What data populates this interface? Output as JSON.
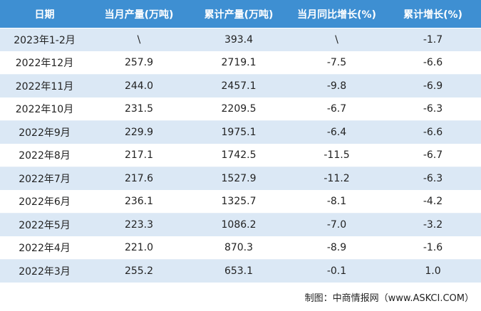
{
  "table": {
    "header": [
      "日期",
      "当月产量(万吨)",
      "累计产量(万吨)",
      "当月同比增长(%)",
      "累计增长(%)"
    ],
    "rows": [
      [
        "2023年1-2月",
        "\\",
        "393.4",
        "\\",
        "-1.7"
      ],
      [
        "2022年12月",
        "257.9",
        "2719.1",
        "-7.5",
        "-6.6"
      ],
      [
        "2022年11月",
        "244.0",
        "2457.1",
        "-9.8",
        "-6.9"
      ],
      [
        "2022年10月",
        "231.5",
        "2209.5",
        "-6.7",
        "-6.3"
      ],
      [
        "2022年9月",
        "229.9",
        "1975.1",
        "-6.4",
        "-6.6"
      ],
      [
        "2022年8月",
        "217.1",
        "1742.5",
        "-11.5",
        "-6.7"
      ],
      [
        "2022年7月",
        "217.6",
        "1527.9",
        "-11.2",
        "-6.3"
      ],
      [
        "2022年6月",
        "236.1",
        "1325.7",
        "-8.1",
        "-4.2"
      ],
      [
        "2022年5月",
        "223.3",
        "1086.2",
        "-7.0",
        "-3.2"
      ],
      [
        "2022年4月",
        "221.0",
        "870.3",
        "-8.9",
        "-1.6"
      ],
      [
        "2022年3月",
        "255.2",
        "653.1",
        "-0.1",
        "1.0"
      ]
    ]
  },
  "footer": {
    "source": "制图：中商情报网（www.ASKCI.COM）"
  }
}
